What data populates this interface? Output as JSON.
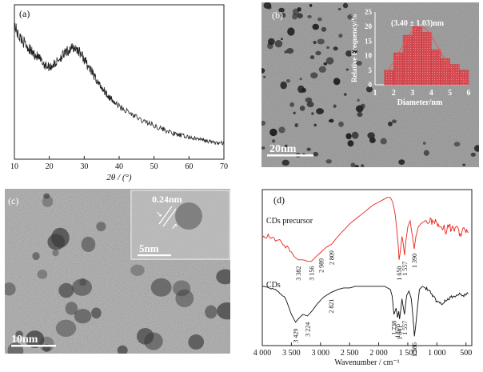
{
  "panels": {
    "a": {
      "label": "(a)",
      "chart_data": {
        "type": "line",
        "xlabel": "2θ / (°)",
        "xlim": [
          10,
          70
        ],
        "xticks": [
          10,
          20,
          30,
          40,
          50,
          60,
          70
        ],
        "ylabel": "",
        "series": [
          {
            "x": [
              10,
              11,
              12,
              13,
              14,
              15,
              16,
              17,
              18,
              19,
              20,
              21,
              22,
              23,
              24,
              25,
              26,
              27,
              28,
              29,
              30,
              31,
              32,
              33,
              34,
              35,
              36,
              37,
              38,
              39,
              40,
              42,
              44,
              46,
              48,
              50,
              52,
              54,
              56,
              58,
              60,
              62,
              64,
              66,
              68,
              70
            ],
            "y": [
              0.92,
              0.85,
              0.82,
              0.79,
              0.76,
              0.73,
              0.71,
              0.69,
              0.66,
              0.64,
              0.63,
              0.64,
              0.66,
              0.69,
              0.71,
              0.73,
              0.75,
              0.76,
              0.75,
              0.72,
              0.68,
              0.64,
              0.6,
              0.56,
              0.52,
              0.49,
              0.46,
              0.43,
              0.4,
              0.38,
              0.36,
              0.33,
              0.3,
              0.27,
              0.25,
              0.23,
              0.21,
              0.19,
              0.17,
              0.16,
              0.15,
              0.14,
              0.13,
              0.12,
              0.11,
              0.11
            ]
          }
        ]
      }
    },
    "b": {
      "label": "(b)",
      "scale_bar": "20nm",
      "inset_chart_data": {
        "type": "bar",
        "annotation": "(3.40 ± 1.03)nm",
        "xlabel": "Diameter/nm",
        "ylabel": "Relative Frequency/%",
        "xlim": [
          1,
          6
        ],
        "ylim": [
          0,
          25
        ],
        "xticks": [
          1,
          2,
          3,
          4,
          5,
          6
        ],
        "yticks": [
          0,
          5,
          10,
          15,
          20,
          25
        ],
        "bins": [
          1.75,
          2.25,
          2.75,
          3.25,
          3.75,
          4.25,
          4.75,
          5.25,
          5.75
        ],
        "values": [
          5,
          11,
          17,
          20,
          18,
          12,
          9,
          7,
          5
        ]
      }
    },
    "c": {
      "label": "(c)",
      "scale_bar": "10nm",
      "inset_scale_bar": "5nm",
      "lattice_label": "0.24nm"
    },
    "d": {
      "label": "(d)",
      "chart_data": {
        "type": "line",
        "xlabel": "Wavenumber / cm⁻¹",
        "xlim": [
          4000,
          400
        ],
        "xtick_values": [
          4000,
          3500,
          3000,
          2500,
          2000,
          1500,
          1000,
          500
        ],
        "xtick_labels": [
          "4 000",
          "3 500",
          "3 000",
          "2 500",
          "2 000",
          "1 500",
          "1 000",
          "500"
        ],
        "series": [
          {
            "name": "CDs precursor",
            "color": "#e8241c",
            "x": [
              4000,
              3900,
              3800,
              3700,
              3600,
              3500,
              3450,
              3382,
              3300,
              3220,
              3156,
              3080,
              2989,
              2900,
              2809,
              2700,
              2600,
              2500,
              2400,
              2300,
              2200,
              2100,
              2000,
              1900,
              1850,
              1800,
              1760,
              1720,
              1690,
              1660,
              1650,
              1630,
              1600,
              1580,
              1557,
              1530,
              1500,
              1460,
              1420,
              1390,
              1360,
              1320,
              1280,
              1240,
              1200,
              1150,
              1100,
              1050,
              1000,
              950,
              900,
              850,
              800,
              750,
              700,
              650,
              600,
              550,
              500,
              450
            ],
            "y": [
              0.7,
              0.7,
              0.69,
              0.67,
              0.64,
              0.6,
              0.57,
              0.55,
              0.55,
              0.54,
              0.54,
              0.57,
              0.6,
              0.63,
              0.65,
              0.7,
              0.74,
              0.78,
              0.81,
              0.84,
              0.87,
              0.9,
              0.92,
              0.94,
              0.95,
              0.95,
              0.92,
              0.85,
              0.75,
              0.62,
              0.55,
              0.6,
              0.7,
              0.66,
              0.58,
              0.68,
              0.76,
              0.8,
              0.7,
              0.62,
              0.7,
              0.76,
              0.78,
              0.79,
              0.8,
              0.8,
              0.79,
              0.8,
              0.79,
              0.76,
              0.76,
              0.74,
              0.76,
              0.75,
              0.74,
              0.75,
              0.72,
              0.74,
              0.73,
              0.72
            ]
          },
          {
            "name": "CDs",
            "color": "#111111",
            "x": [
              4000,
              3900,
              3800,
              3700,
              3600,
              3500,
              3429,
              3360,
              3300,
              3224,
              3150,
              3050,
              2950,
              2821,
              2700,
              2600,
              2500,
              2400,
              2300,
              2200,
              2100,
              2000,
              1900,
              1850,
              1800,
              1770,
              1738,
              1700,
              1675,
              1655,
              1641,
              1620,
              1600,
              1557,
              1520,
              1480,
              1440,
              1410,
              1386,
              1360,
              1330,
              1300,
              1250,
              1200,
              1150,
              1100,
              1050,
              1000,
              950,
              900,
              850,
              800,
              750,
              700,
              650,
              600,
              550,
              500,
              450
            ],
            "y": [
              0.38,
              0.37,
              0.36,
              0.34,
              0.3,
              0.2,
              0.15,
              0.18,
              0.2,
              0.19,
              0.22,
              0.27,
              0.31,
              0.34,
              0.36,
              0.37,
              0.37,
              0.38,
              0.38,
              0.38,
              0.38,
              0.38,
              0.38,
              0.37,
              0.36,
              0.32,
              0.2,
              0.24,
              0.18,
              0.22,
              0.17,
              0.23,
              0.3,
              0.2,
              0.32,
              0.35,
              0.3,
              0.18,
              0.06,
              0.14,
              0.26,
              0.36,
              0.38,
              0.37,
              0.36,
              0.33,
              0.31,
              0.28,
              0.27,
              0.27,
              0.29,
              0.3,
              0.31,
              0.32,
              0.32,
              0.33,
              0.32,
              0.33,
              0.33
            ]
          }
        ],
        "annotations_precursor": [
          "3 382",
          "3 156",
          "2 989",
          "2 809",
          "1 650",
          "1 557",
          "1 390"
        ],
        "annotations_cds": [
          "3 429",
          "3 224",
          "2 821",
          "1 738",
          "1 675",
          "1 641",
          "1 557",
          "1 386"
        ]
      }
    }
  }
}
